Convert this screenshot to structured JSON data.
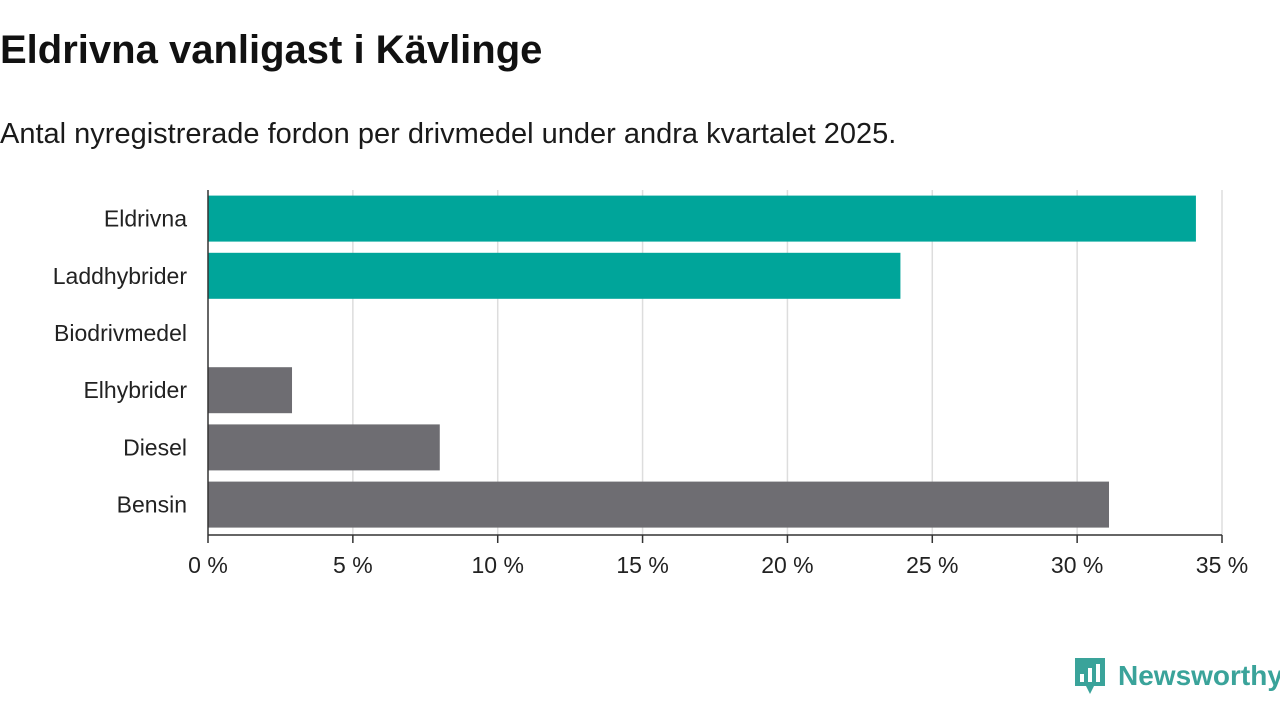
{
  "title": "Eldrivna vanligast i Kävlinge",
  "subtitle": "Antal nyregistrerade fordon per drivmedel under andra kvartalet 2025.",
  "brand": "Newsworthy",
  "colors": {
    "highlight": "#00a59a",
    "other": "#6e6d72",
    "brand": "#3aa39a",
    "grid": "#dddddd",
    "axis": "#333333"
  },
  "chart_data": {
    "type": "bar",
    "orientation": "horizontal",
    "categories": [
      "Eldrivna",
      "Laddhybrider",
      "Biodrivmedel",
      "Elhybrider",
      "Diesel",
      "Bensin"
    ],
    "values": [
      34.1,
      23.9,
      0,
      2.9,
      8.0,
      31.1
    ],
    "bar_colors": [
      "#00a59a",
      "#00a59a",
      "#6e6d72",
      "#6e6d72",
      "#6e6d72",
      "#6e6d72"
    ],
    "xlim": [
      0,
      35
    ],
    "xticks": [
      0,
      5,
      10,
      15,
      20,
      25,
      30,
      35
    ],
    "xtick_labels": [
      "0 %",
      "5 %",
      "10 %",
      "15 %",
      "20 %",
      "25 %",
      "30 %",
      "35 %"
    ],
    "xlabel": "",
    "ylabel": "",
    "grid": true
  }
}
